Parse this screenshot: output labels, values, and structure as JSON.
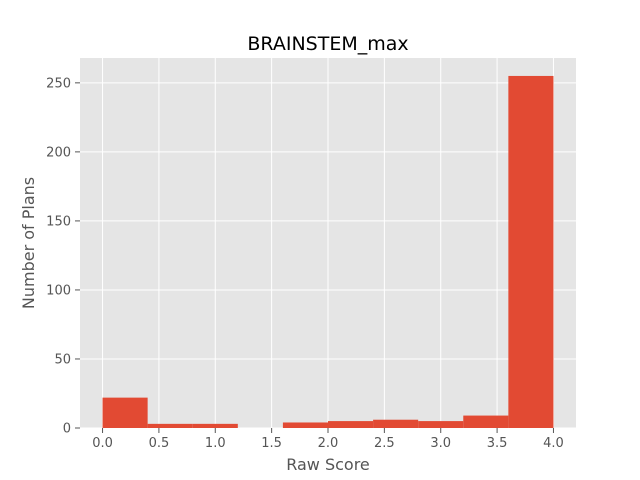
{
  "chart_data": {
    "type": "bar",
    "title": "BRAINSTEM_max",
    "xlabel": "Raw Score",
    "ylabel": "Number of Plans",
    "xlim": [
      -0.2,
      4.2
    ],
    "ylim": [
      0,
      268
    ],
    "xticks": [
      "0.0",
      "0.5",
      "1.0",
      "1.5",
      "2.0",
      "2.5",
      "3.0",
      "3.5",
      "4.0"
    ],
    "yticks": [
      "0",
      "50",
      "100",
      "150",
      "200",
      "250"
    ],
    "grid": true,
    "bins": [
      {
        "x0": 0.0,
        "x1": 0.4,
        "count": 22
      },
      {
        "x0": 0.4,
        "x1": 0.8,
        "count": 3
      },
      {
        "x0": 0.8,
        "x1": 1.2,
        "count": 3
      },
      {
        "x0": 1.2,
        "x1": 1.6,
        "count": 0
      },
      {
        "x0": 1.6,
        "x1": 2.0,
        "count": 4
      },
      {
        "x0": 2.0,
        "x1": 2.4,
        "count": 5
      },
      {
        "x0": 2.4,
        "x1": 2.8,
        "count": 6
      },
      {
        "x0": 2.8,
        "x1": 3.2,
        "count": 5
      },
      {
        "x0": 3.2,
        "x1": 3.6,
        "count": 9
      },
      {
        "x0": 3.6,
        "x1": 4.0,
        "count": 255
      }
    ],
    "colors": {
      "bar": "#E24A33",
      "background": "#E5E5E5",
      "grid": "#FFFFFF"
    }
  }
}
